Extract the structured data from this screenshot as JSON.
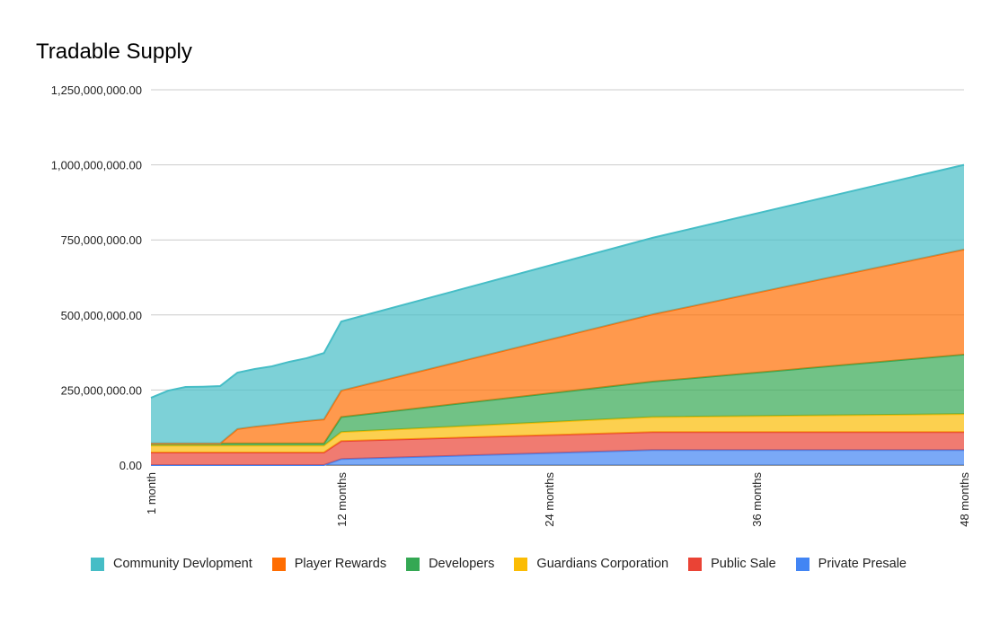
{
  "chart_data": {
    "type": "area",
    "stacked": true,
    "title": "Tradable Supply",
    "xlabel": "",
    "ylabel": "",
    "x_unit": "months",
    "x": [
      1,
      2,
      3,
      4,
      5,
      6,
      7,
      8,
      9,
      10,
      11,
      12,
      30,
      48
    ],
    "x_ticks": [
      {
        "value": 1,
        "label": "1 month"
      },
      {
        "value": 12,
        "label": "12 months"
      },
      {
        "value": 24,
        "label": "24 months"
      },
      {
        "value": 36,
        "label": "36 months"
      },
      {
        "value": 48,
        "label": "48 months"
      }
    ],
    "ylim": [
      0,
      1250000000
    ],
    "y_ticks": [
      {
        "value": 0,
        "label": "0.00"
      },
      {
        "value": 250000000,
        "label": "250,000,000.00"
      },
      {
        "value": 500000000,
        "label": "500,000,000.00"
      },
      {
        "value": 750000000,
        "label": "750,000,000.00"
      },
      {
        "value": 1000000000,
        "label": "1,000,000,000.00"
      },
      {
        "value": 1250000000,
        "label": "1,250,000,000.00"
      }
    ],
    "grid": true,
    "legend_position": "bottom",
    "series": [
      {
        "name": "Private Presale",
        "color": "#4285f4",
        "values": [
          0,
          0,
          0,
          0,
          0,
          0,
          0,
          0,
          0,
          0,
          0,
          20000000,
          50000000,
          50000000
        ]
      },
      {
        "name": "Public Sale",
        "color": "#ea4335",
        "values": [
          42000000,
          42000000,
          42000000,
          42000000,
          42000000,
          42000000,
          42000000,
          42000000,
          42000000,
          42000000,
          42000000,
          60000000,
          60000000,
          60000000
        ]
      },
      {
        "name": "Guardians Corporation",
        "color": "#fbbc04",
        "values": [
          23000000,
          23000000,
          23000000,
          23000000,
          23000000,
          23000000,
          23000000,
          23000000,
          23000000,
          23000000,
          23000000,
          30000000,
          50000000,
          60000000
        ]
      },
      {
        "name": "Developers",
        "color": "#34a853",
        "values": [
          7000000,
          7000000,
          7000000,
          7000000,
          7000000,
          7000000,
          7000000,
          7000000,
          7000000,
          7000000,
          7000000,
          50000000,
          118000000,
          198000000
        ]
      },
      {
        "name": "Player Rewards",
        "color": "#ff6d01",
        "values": [
          0,
          0,
          0,
          0,
          0,
          48000000,
          56000000,
          62000000,
          69000000,
          75000000,
          80000000,
          88000000,
          224000000,
          350000000
        ]
      },
      {
        "name": "Community Devlopment",
        "color": "#46bdc6",
        "values": [
          152000000,
          176000000,
          188000000,
          189000000,
          191000000,
          188000000,
          192000000,
          195000000,
          203000000,
          209000000,
          221000000,
          230000000,
          255000000,
          282000000
        ]
      }
    ],
    "legend_order": [
      "Community Devlopment",
      "Player Rewards",
      "Developers",
      "Guardians Corporation",
      "Public Sale",
      "Private Presale"
    ]
  }
}
